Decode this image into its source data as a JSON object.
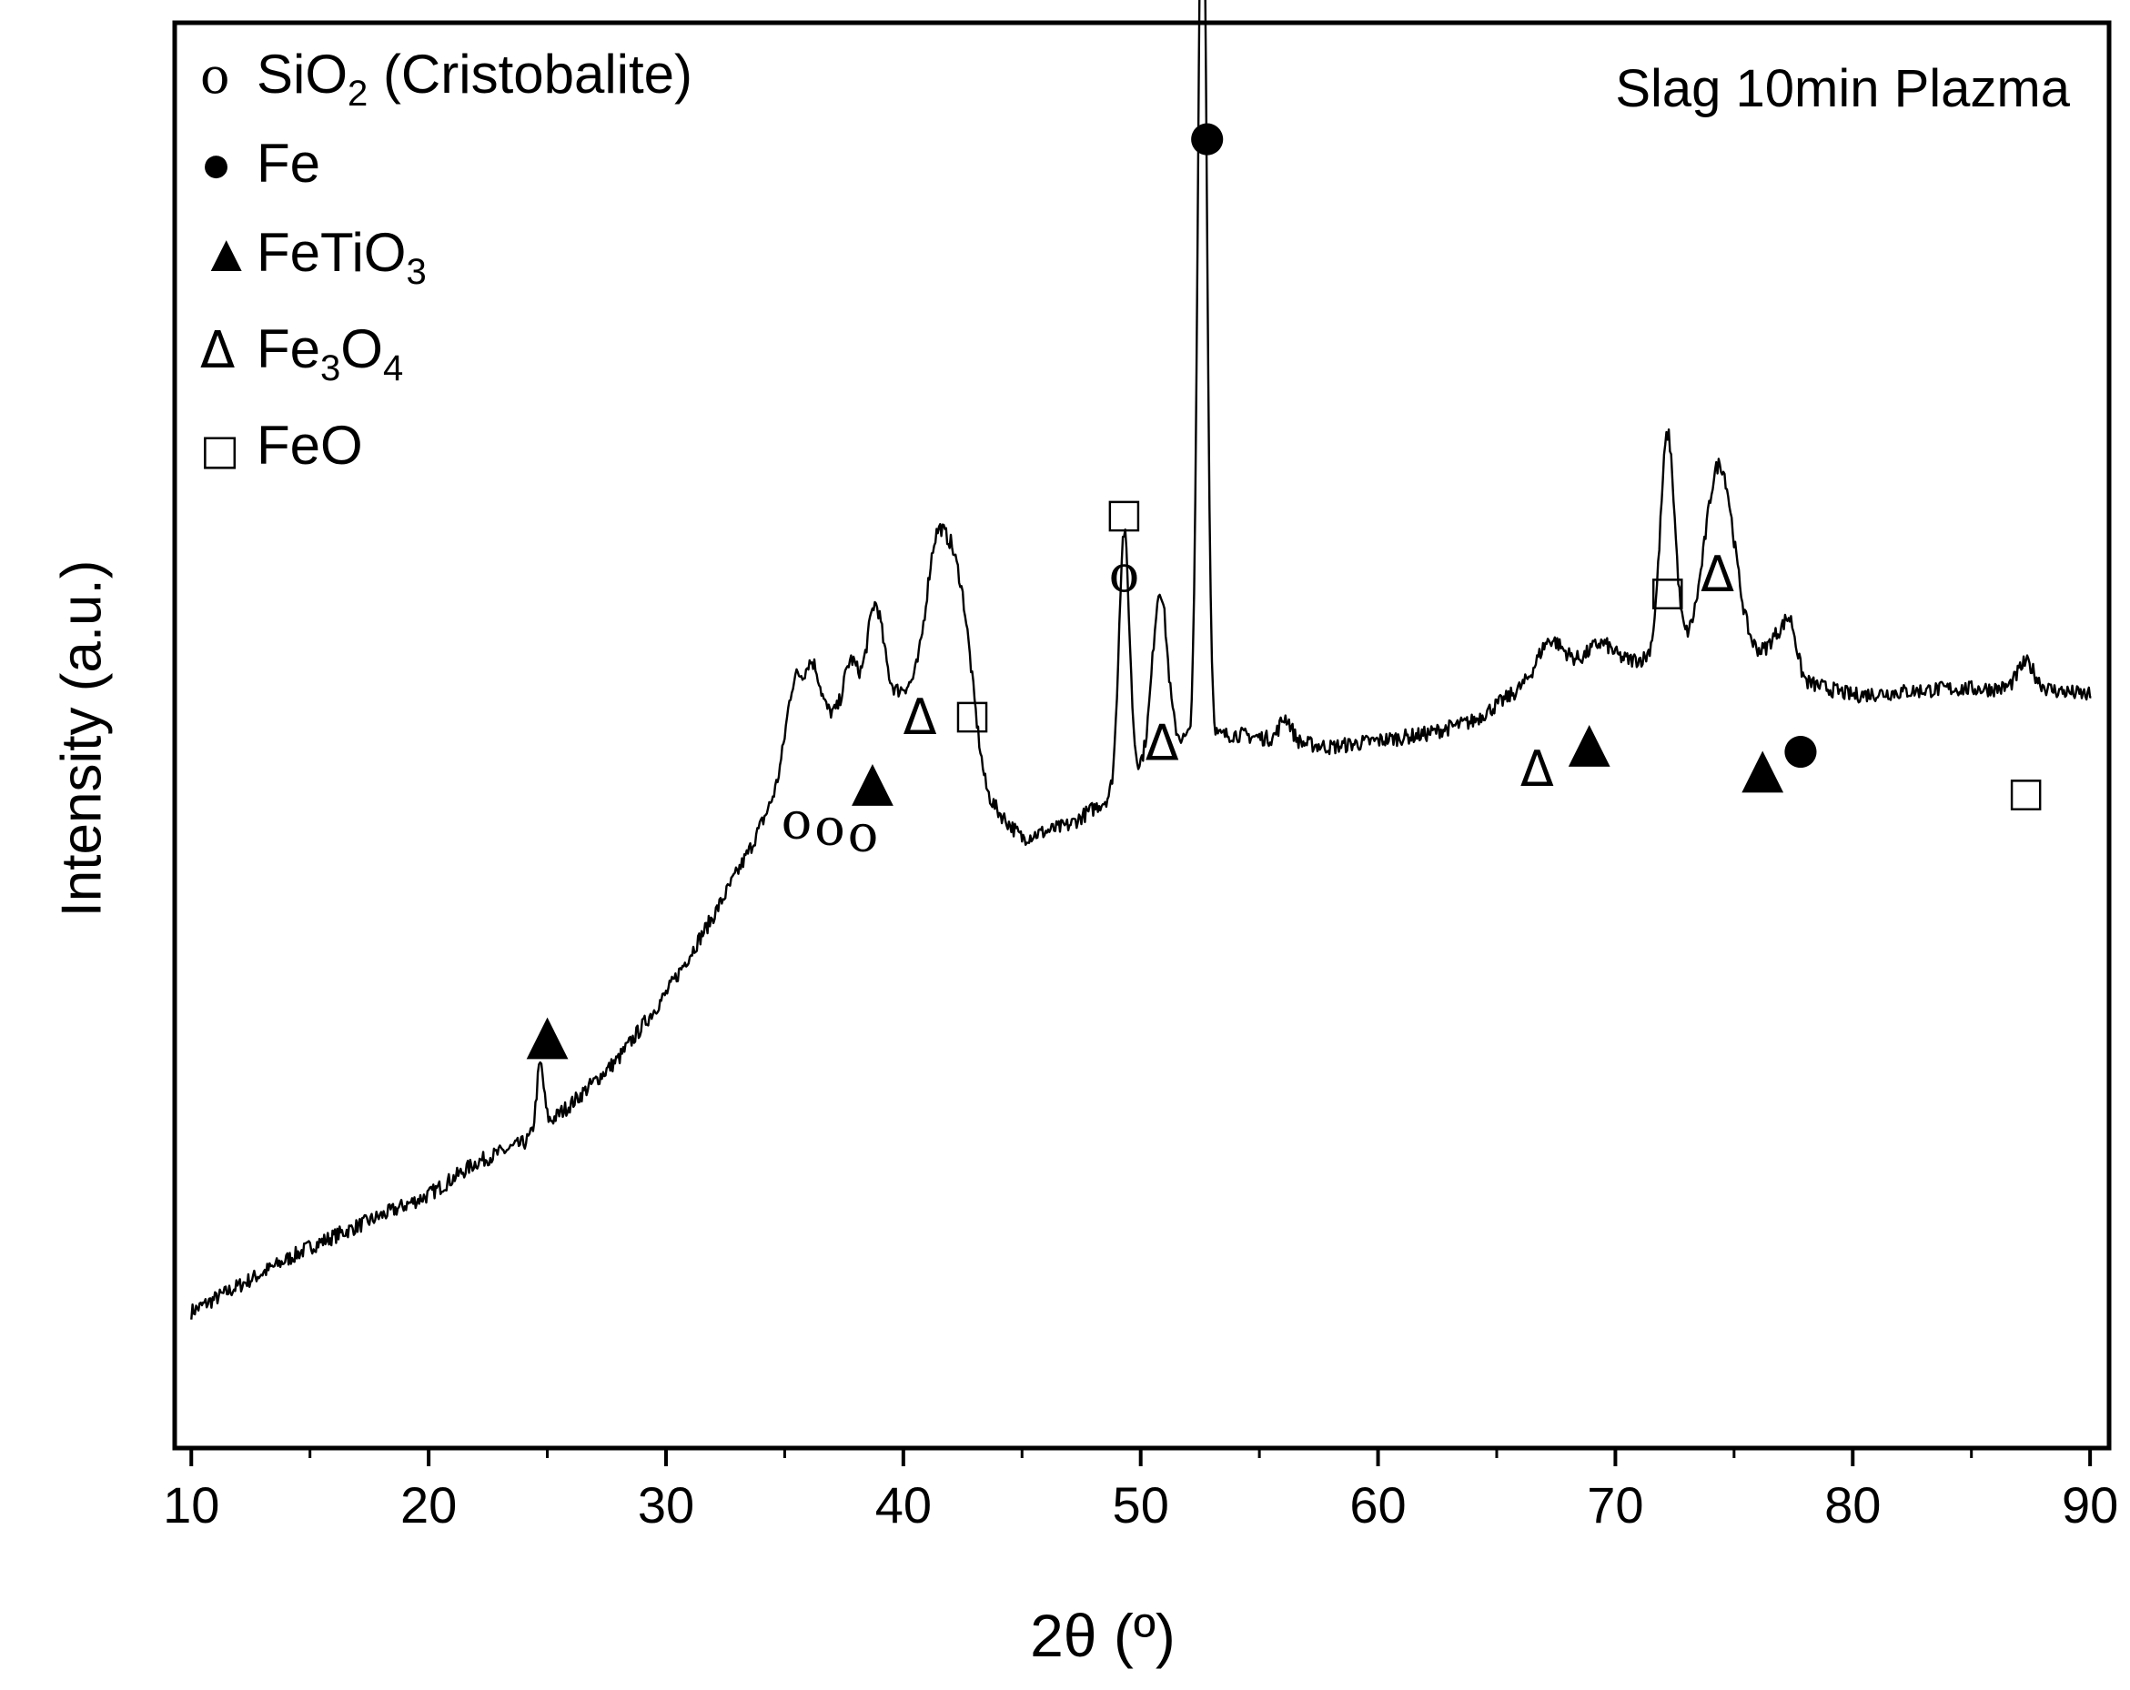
{
  "chart_data": {
    "type": "line",
    "title": "",
    "annotation_text": "Slag 10min Plazma",
    "xlabel": "2θ (º)",
    "ylabel": "Intensity (a.u.)",
    "xlim": [
      9.3,
      90.8
    ],
    "ylim": [
      0,
      1000
    ],
    "x_ticks": [
      10,
      20,
      30,
      40,
      50,
      60,
      70,
      80,
      90
    ],
    "x_tick_labels": [
      "10",
      "20",
      "30",
      "40",
      "50",
      "60",
      "70",
      "80",
      "90"
    ],
    "grid": false,
    "legend_placement": "top-left",
    "legend": [
      {
        "symbol": "o",
        "formula": "SiO",
        "sub": "2",
        "suffix": " (Cristobalite)"
      },
      {
        "symbol": "●",
        "formula": "Fe",
        "sub": "",
        "suffix": ""
      },
      {
        "symbol": "▲",
        "formula": "FeTiO",
        "sub": "3",
        "suffix": ""
      },
      {
        "symbol": "Δ",
        "formula": "Fe",
        "sub": "3",
        "formula2": "O",
        "sub2": "4",
        "suffix": ""
      },
      {
        "symbol": "□",
        "formula": "FeO",
        "sub": "",
        "suffix": ""
      }
    ],
    "series": [
      {
        "color": "#000000",
        "baseline": [
          [
            10,
            105
          ],
          [
            15,
            155
          ],
          [
            20,
            195
          ],
          [
            22,
            220
          ],
          [
            24,
            235
          ],
          [
            26,
            265
          ],
          [
            28,
            300
          ],
          [
            30,
            350
          ],
          [
            32,
            410
          ],
          [
            33.5,
            460
          ],
          [
            35,
            520
          ],
          [
            36,
            560
          ],
          [
            37,
            565
          ],
          [
            38,
            560
          ],
          [
            40,
            585
          ],
          [
            42,
            580
          ],
          [
            43.5,
            500
          ],
          [
            45,
            470
          ],
          [
            47,
            480
          ],
          [
            49,
            505
          ],
          [
            51,
            545
          ],
          [
            54,
            550
          ],
          [
            56,
            545
          ],
          [
            58,
            540
          ],
          [
            60,
            545
          ],
          [
            62,
            550
          ],
          [
            64,
            560
          ],
          [
            66,
            585
          ],
          [
            68,
            605
          ],
          [
            70,
            605
          ],
          [
            72,
            610
          ],
          [
            74,
            620
          ],
          [
            76,
            610
          ],
          [
            78,
            590
          ],
          [
            80,
            580
          ],
          [
            84,
            585
          ],
          [
            88,
            585
          ],
          [
            90,
            580
          ]
        ],
        "peaks": [
          [
            24.7,
            50,
            0.15
          ],
          [
            35.4,
            55,
            0.35
          ],
          [
            36.2,
            40,
            0.3
          ],
          [
            37.8,
            45,
            0.3
          ],
          [
            38.8,
            80,
            0.35
          ],
          [
            41.4,
            110,
            0.45
          ],
          [
            42.4,
            100,
            0.5
          ],
          [
            49.3,
            195,
            0.22
          ],
          [
            50.8,
            120,
            0.3
          ],
          [
            52.6,
            725,
            0.18
          ],
          [
            56.1,
            18,
            0.25
          ],
          [
            67.2,
            25,
            0.5
          ],
          [
            69.4,
            15,
            0.5
          ],
          [
            72.2,
            170,
            0.3
          ],
          [
            74.4,
            140,
            0.6
          ],
          [
            76.9,
            25,
            0.4
          ],
          [
            77.4,
            30,
            0.25
          ],
          [
            87.3,
            20,
            0.35
          ]
        ]
      }
    ],
    "markers": [
      {
        "symbol": "▲",
        "x": 25.0,
        "y": 305
      },
      {
        "symbol": "o",
        "x": 35.5,
        "y": 470
      },
      {
        "symbol": "o",
        "x": 36.9,
        "y": 465
      },
      {
        "symbol": "o",
        "x": 38.3,
        "y": 460
      },
      {
        "symbol": "▲",
        "x": 38.7,
        "y": 500
      },
      {
        "symbol": "Δ",
        "x": 40.7,
        "y": 550
      },
      {
        "symbol": "□",
        "x": 42.9,
        "y": 555
      },
      {
        "symbol": "□",
        "x": 49.3,
        "y": 710
      },
      {
        "symbol": "o",
        "x": 49.3,
        "y": 660
      },
      {
        "symbol": "Δ",
        "x": 50.9,
        "y": 530
      },
      {
        "symbol": "●",
        "x": 52.8,
        "y": 1000
      },
      {
        "symbol": "Δ",
        "x": 66.7,
        "y": 510
      },
      {
        "symbol": "▲",
        "x": 68.9,
        "y": 530
      },
      {
        "symbol": "□",
        "x": 72.2,
        "y": 650
      },
      {
        "symbol": "Δ",
        "x": 74.3,
        "y": 660
      },
      {
        "symbol": "▲",
        "x": 76.2,
        "y": 510
      },
      {
        "symbol": "●",
        "x": 77.8,
        "y": 528
      },
      {
        "symbol": "□",
        "x": 87.3,
        "y": 495
      }
    ]
  }
}
